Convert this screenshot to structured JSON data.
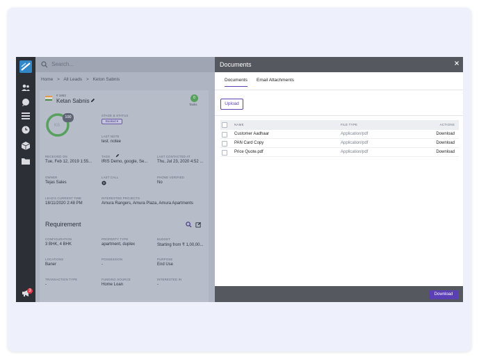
{
  "search": {
    "placeholder": "Search..."
  },
  "breadcrumb": [
    "Home",
    ">",
    "All Leads",
    ">",
    "Keton Sabnis"
  ],
  "lead": {
    "id": "# 1863",
    "name": "Ketan Sabnis",
    "tasks_count": "0",
    "tasks_label": "Tasks",
    "score": "100",
    "score_initials": "KS",
    "fields": [
      {
        "label": "STAGE & STATUS",
        "value": ""
      },
      {
        "label": "LAST NOTE",
        "value": "test. notee"
      },
      {
        "label": "RECEIVED ON",
        "value": "Tue, Feb 12, 2019 1:55..."
      },
      {
        "label": "TAGS",
        "value": "IRIS Demo, google, Se..."
      },
      {
        "label": "LAST CONTACTED AT",
        "value": "Thu, Jul 23, 2020 4:52 ..."
      },
      {
        "label": "OWNER",
        "value": "Tejas Sales"
      },
      {
        "label": "LAST CALL",
        "value": ""
      },
      {
        "label": "PHONE VERIFIED",
        "value": "No"
      },
      {
        "label": "LEAD'S CURRENT TIME",
        "value": "18/11/2020 2:48 PM"
      },
      {
        "label": "INTERESTED PROJECTS",
        "value": "Amura Rangers, Amura Plaza, Amura Apartments"
      }
    ],
    "status": "Booked"
  },
  "requirement": {
    "title": "Requirement",
    "fields": [
      {
        "label": "CONFIGURATION",
        "value": "3 BHK, 4 BHK"
      },
      {
        "label": "PROPERTY TYPE",
        "value": "apartment, duplex"
      },
      {
        "label": "BUDGET",
        "value": "Starting from ₹ 1,00,00..."
      },
      {
        "label": "LOCATIONS",
        "value": "Baner"
      },
      {
        "label": "POSSESSION",
        "value": "-"
      },
      {
        "label": "PURPOSE",
        "value": "End Use"
      },
      {
        "label": "TRANSACTION TYPE",
        "value": "-"
      },
      {
        "label": "FUNDING SOURCE",
        "value": "Home Loan"
      },
      {
        "label": "INTERESTED IN",
        "value": "-"
      }
    ]
  },
  "documents": {
    "title": "Documents",
    "tabs": [
      "Documents",
      "Email Attachments"
    ],
    "upload_label": "Upload",
    "columns": [
      "NAME",
      "FILE TYPE",
      "ACTIONS"
    ],
    "rows": [
      {
        "name": "Customer Aadhaar",
        "type": "Application/pdf",
        "action": "Download"
      },
      {
        "name": "PAN Card Copy",
        "type": "Application/pdf",
        "action": "Download"
      },
      {
        "name": "Price Quote.pdf",
        "type": "Application/pdf",
        "action": "Download"
      }
    ],
    "download_label": "Download"
  },
  "notifications": {
    "count": "3"
  }
}
